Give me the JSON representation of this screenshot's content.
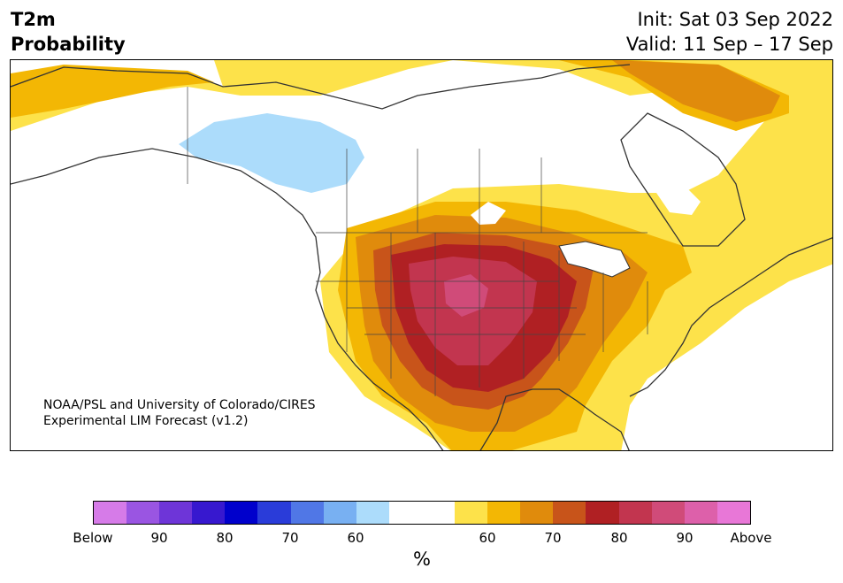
{
  "header": {
    "variable": "T2m",
    "product": "Probability",
    "init": "Init: Sat 03 Sep 2022",
    "valid": "Valid: 11 Sep – 17 Sep"
  },
  "credit": {
    "line1": "NOAA/PSL and University of Colorado/CIRES",
    "line2": "Experimental LIM Forecast (v1.2)"
  },
  "colorbar": {
    "colors": [
      "#d67be8",
      "#9a55e2",
      "#6e35d8",
      "#3718cf",
      "#0000cc",
      "#2a3cd9",
      "#5077e6",
      "#78b0f2",
      "#acdcfb",
      "#ffffff",
      "#ffffff",
      "#fde24a",
      "#f3b704",
      "#e08b0c",
      "#c8541a",
      "#b02023",
      "#c2354f",
      "#d04b79",
      "#dd60aa",
      "#e877d7"
    ],
    "tick_labels": [
      "Below",
      "90",
      "80",
      "70",
      "60",
      "60",
      "70",
      "80",
      "90",
      "Above"
    ],
    "unit": "%"
  },
  "map": {
    "region": "North America",
    "colors": {
      "ocean": "#ffffff",
      "coast": "#333333"
    }
  }
}
